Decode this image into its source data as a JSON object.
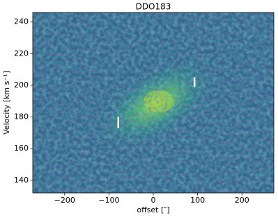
{
  "chart_data": {
    "type": "image",
    "title": "DDO183",
    "x_label": "offset [″]",
    "y_label": "Velocity [km s⁻¹]",
    "xlim": [
      -272,
      272
    ],
    "ylim": [
      132,
      246
    ],
    "xticks": [
      {
        "value": -200,
        "label": "−200"
      },
      {
        "value": -100,
        "label": "−100"
      },
      0,
      100,
      200
    ],
    "yticks": [
      140,
      160,
      180,
      200,
      220,
      240
    ],
    "markers": [
      {
        "x": -79,
        "y": [
          173,
          180
        ]
      },
      {
        "x": 93,
        "y": [
          199,
          205
        ]
      }
    ],
    "marker_color": "#ffffff"
  }
}
